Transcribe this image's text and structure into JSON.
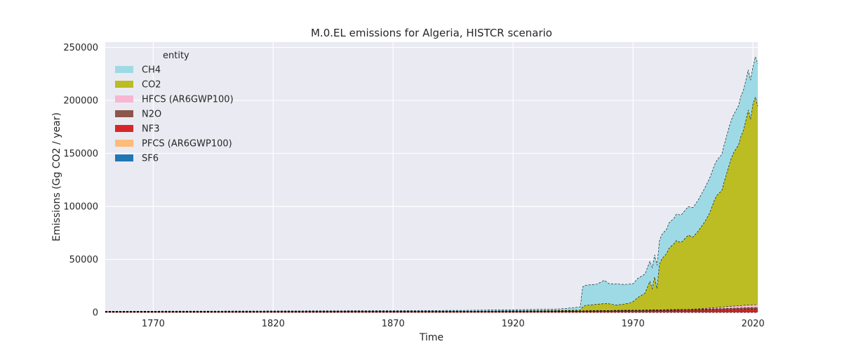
{
  "chart_data": {
    "type": "area",
    "stacked": true,
    "title": "M.0.EL emissions for Algeria, HISTCR scenario",
    "xlabel": "Time",
    "ylabel": "Emissions (Gg CO2 / year)",
    "xlim": [
      1750,
      2022
    ],
    "ylim": [
      0,
      255000
    ],
    "xticks": [
      1770,
      1820,
      1870,
      1920,
      1970,
      2020
    ],
    "yticks": [
      0,
      50000,
      100000,
      150000,
      200000,
      250000
    ],
    "grid": true,
    "legend_title": "entity",
    "legend_position": "top-left",
    "colors": {
      "background": "#eaeaf2",
      "grid": "#ffffff",
      "CH4": "#9edae5",
      "CO2": "#bcbd22",
      "HFCS (AR6GWP100)": "#f7b6d2",
      "N2O": "#8c564b",
      "NF3": "#d62728",
      "PFCS (AR6GWP100)": "#ffbb78",
      "SF6": "#1f77b4"
    },
    "series_order_bottom_to_top": [
      "SF6",
      "PFCS (AR6GWP100)",
      "NF3",
      "N2O",
      "HFCS (AR6GWP100)",
      "CO2",
      "CH4"
    ],
    "legend_entries": [
      "CH4",
      "CO2",
      "HFCS (AR6GWP100)",
      "N2O",
      "NF3",
      "PFCS (AR6GWP100)",
      "SF6"
    ],
    "x": [
      1750,
      1800,
      1850,
      1900,
      1930,
      1940,
      1948,
      1949,
      1950,
      1955,
      1958,
      1960,
      1963,
      1965,
      1968,
      1970,
      1972,
      1975,
      1977,
      1978,
      1979,
      1980,
      1981,
      1982,
      1984,
      1985,
      1987,
      1988,
      1990,
      1993,
      1995,
      1997,
      2000,
      2002,
      2004,
      2005,
      2007,
      2008,
      2010,
      2011,
      2012,
      2014,
      2015,
      2016,
      2017,
      2018,
      2019,
      2020,
      2021,
      2022
    ],
    "series": [
      {
        "name": "SF6",
        "values": [
          0,
          0,
          0,
          0,
          0,
          0,
          0,
          0,
          0,
          0,
          0,
          0,
          0,
          0,
          0,
          0,
          0,
          0,
          0,
          0,
          0,
          0,
          0,
          0,
          0,
          0,
          0,
          0,
          0,
          0,
          0,
          0,
          0,
          0,
          0,
          0,
          0,
          0,
          0,
          0,
          0,
          0,
          0,
          0,
          0,
          0,
          0,
          0,
          0,
          0
        ]
      },
      {
        "name": "PFCS (AR6GWP100)",
        "values": [
          0,
          0,
          0,
          0,
          0,
          0,
          0,
          0,
          0,
          0,
          0,
          0,
          0,
          0,
          0,
          0,
          0,
          0,
          0,
          0,
          0,
          0,
          0,
          0,
          0,
          0,
          0,
          0,
          0,
          0,
          0,
          0,
          0,
          0,
          0,
          0,
          0,
          0,
          0,
          0,
          0,
          0,
          0,
          0,
          0,
          0,
          0,
          0,
          0,
          0
        ]
      },
      {
        "name": "NF3",
        "values": [
          500,
          550,
          650,
          750,
          850,
          900,
          1000,
          1000,
          1100,
          1200,
          1250,
          1300,
          1350,
          1400,
          1450,
          1500,
          1500,
          1550,
          1600,
          1600,
          1650,
          1700,
          1700,
          1700,
          1750,
          1800,
          1800,
          1850,
          1900,
          1900,
          1950,
          2000,
          2100,
          2150,
          2200,
          2250,
          2300,
          2350,
          2400,
          2450,
          2500,
          2600,
          2650,
          2700,
          2750,
          2800,
          2850,
          2800,
          2900,
          2950
        ]
      },
      {
        "name": "N2O",
        "values": [
          300,
          300,
          350,
          350,
          400,
          400,
          400,
          450,
          450,
          450,
          500,
          500,
          500,
          550,
          550,
          600,
          600,
          650,
          650,
          700,
          700,
          700,
          750,
          750,
          800,
          800,
          800,
          850,
          900,
          900,
          950,
          1000,
          1050,
          1100,
          1150,
          1200,
          1250,
          1300,
          1350,
          1400,
          1400,
          1450,
          1500,
          1550,
          1600,
          1600,
          1650,
          1600,
          1650,
          1700
        ]
      },
      {
        "name": "HFCS (AR6GWP100)",
        "values": [
          0,
          0,
          0,
          0,
          0,
          0,
          0,
          0,
          0,
          0,
          0,
          0,
          0,
          0,
          0,
          0,
          0,
          0,
          0,
          0,
          0,
          0,
          0,
          0,
          0,
          0,
          0,
          0,
          0,
          0,
          100,
          300,
          600,
          800,
          1000,
          1200,
          1400,
          1600,
          1800,
          1900,
          2000,
          2100,
          2200,
          2300,
          2400,
          2500,
          2600,
          2600,
          2700,
          2800
        ]
      },
      {
        "name": "CO2",
        "values": [
          0,
          0,
          0,
          0,
          300,
          500,
          700,
          3500,
          5000,
          6000,
          6500,
          6300,
          5000,
          5500,
          6500,
          8000,
          12000,
          16000,
          27000,
          20000,
          31000,
          20000,
          43000,
          48000,
          53000,
          58000,
          62000,
          65000,
          63000,
          70000,
          68000,
          73000,
          82000,
          90000,
          102000,
          106000,
          110000,
          118000,
          133000,
          140000,
          145000,
          152000,
          160000,
          165000,
          174000,
          184000,
          175000,
          190000,
          196000,
          187000
        ]
      },
      {
        "name": "CH4",
        "values": [
          300,
          400,
          500,
          800,
          1200,
          1500,
          3000,
          19000,
          19000,
          19000,
          22000,
          19000,
          20000,
          19000,
          18000,
          17000,
          18000,
          18000,
          19000,
          20000,
          21000,
          22000,
          22000,
          23000,
          23000,
          24000,
          24000,
          25000,
          26000,
          27000,
          28000,
          29000,
          32000,
          33000,
          33000,
          33000,
          34000,
          35000,
          36000,
          36000,
          36000,
          37000,
          38000,
          38000,
          38000,
          38000,
          37000,
          35000,
          38000,
          40000
        ]
      }
    ]
  }
}
